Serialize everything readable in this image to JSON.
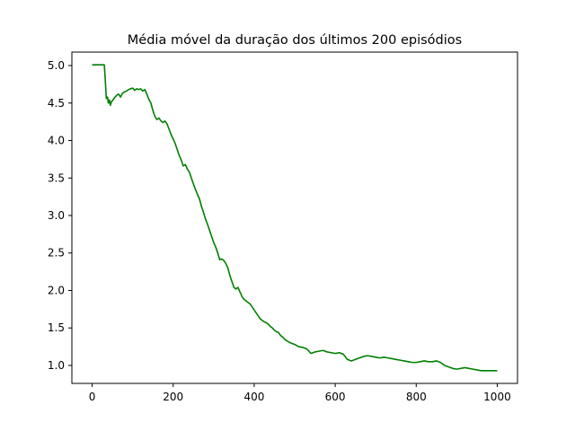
{
  "chart_data": {
    "type": "line",
    "title": "Média móvel da duração dos últimos 200 episódios",
    "xlabel": "",
    "ylabel": "",
    "xlim": [
      -50,
      1050
    ],
    "ylim": [
      0.76,
      5.18
    ],
    "x_ticks": [
      0,
      200,
      400,
      600,
      800,
      1000
    ],
    "y_ticks": [
      1.0,
      1.5,
      2.0,
      2.5,
      3.0,
      3.5,
      4.0,
      4.5,
      5.0
    ],
    "x_tick_labels": [
      "0",
      "200",
      "400",
      "600",
      "800",
      "1000"
    ],
    "y_tick_labels": [
      "1.0",
      "1.5",
      "2.0",
      "2.5",
      "3.0",
      "3.5",
      "4.0",
      "4.5",
      "5.0"
    ],
    "grid": false,
    "legend": "none",
    "series": [
      {
        "color": "#008000",
        "x": [
          0,
          10,
          20,
          30,
          32,
          35,
          38,
          40,
          43,
          45,
          48,
          50,
          55,
          60,
          65,
          70,
          75,
          80,
          85,
          90,
          95,
          100,
          105,
          110,
          115,
          120,
          125,
          130,
          135,
          140,
          145,
          150,
          155,
          160,
          165,
          170,
          175,
          180,
          185,
          190,
          195,
          200,
          205,
          210,
          215,
          220,
          225,
          230,
          235,
          240,
          245,
          250,
          255,
          260,
          265,
          270,
          275,
          280,
          285,
          290,
          295,
          300,
          305,
          310,
          315,
          320,
          325,
          330,
          335,
          340,
          345,
          350,
          355,
          360,
          365,
          370,
          375,
          380,
          385,
          390,
          395,
          400,
          405,
          410,
          415,
          420,
          425,
          430,
          435,
          440,
          445,
          450,
          455,
          460,
          465,
          470,
          475,
          480,
          490,
          500,
          510,
          520,
          530,
          540,
          550,
          560,
          570,
          580,
          590,
          600,
          610,
          620,
          630,
          640,
          650,
          660,
          670,
          680,
          690,
          700,
          710,
          720,
          730,
          740,
          750,
          760,
          770,
          780,
          790,
          800,
          810,
          820,
          830,
          840,
          850,
          860,
          870,
          880,
          890,
          900,
          910,
          920,
          930,
          940,
          950,
          960,
          970,
          980,
          990,
          1000
        ],
        "y": [
          5.01,
          5.01,
          5.01,
          5.01,
          4.85,
          4.56,
          4.58,
          4.5,
          4.54,
          4.47,
          4.52,
          4.53,
          4.57,
          4.6,
          4.62,
          4.58,
          4.63,
          4.65,
          4.66,
          4.68,
          4.69,
          4.7,
          4.67,
          4.69,
          4.68,
          4.69,
          4.66,
          4.68,
          4.62,
          4.55,
          4.5,
          4.4,
          4.32,
          4.28,
          4.3,
          4.26,
          4.24,
          4.26,
          4.22,
          4.15,
          4.08,
          4.02,
          3.96,
          3.88,
          3.8,
          3.74,
          3.66,
          3.68,
          3.62,
          3.58,
          3.5,
          3.42,
          3.35,
          3.28,
          3.22,
          3.12,
          3.04,
          2.95,
          2.88,
          2.8,
          2.72,
          2.64,
          2.58,
          2.5,
          2.41,
          2.42,
          2.4,
          2.36,
          2.3,
          2.2,
          2.12,
          2.04,
          2.02,
          2.04,
          1.98,
          1.92,
          1.88,
          1.86,
          1.84,
          1.82,
          1.78,
          1.74,
          1.7,
          1.66,
          1.62,
          1.6,
          1.58,
          1.57,
          1.55,
          1.52,
          1.5,
          1.47,
          1.45,
          1.44,
          1.4,
          1.38,
          1.35,
          1.33,
          1.3,
          1.28,
          1.25,
          1.24,
          1.22,
          1.16,
          1.18,
          1.19,
          1.2,
          1.18,
          1.17,
          1.16,
          1.17,
          1.15,
          1.08,
          1.06,
          1.08,
          1.1,
          1.12,
          1.13,
          1.12,
          1.11,
          1.1,
          1.11,
          1.1,
          1.09,
          1.08,
          1.07,
          1.06,
          1.05,
          1.04,
          1.04,
          1.05,
          1.06,
          1.05,
          1.05,
          1.06,
          1.04,
          1.0,
          0.98,
          0.96,
          0.95,
          0.96,
          0.97,
          0.96,
          0.95,
          0.94,
          0.93,
          0.93,
          0.93,
          0.93,
          0.93
        ]
      }
    ]
  }
}
